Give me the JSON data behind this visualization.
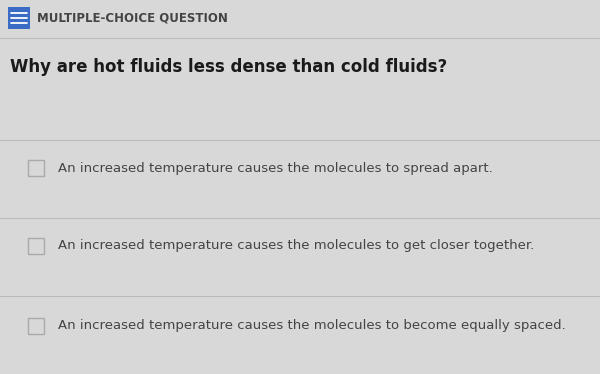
{
  "bg_color": "#d8d8d8",
  "header_icon_color": "#3a6cc6",
  "header_text": "MULTIPLE-CHOICE QUESTION",
  "header_text_color": "#444444",
  "header_fontsize": 8.5,
  "question": "Why are hot fluids less dense than cold fluids?",
  "question_fontsize": 12,
  "question_color": "#1a1a1a",
  "choices": [
    "An increased temperature causes the molecules to spread apart.",
    "An increased temperature causes the molecules to get closer together.",
    "An increased temperature causes the molecules to become equally spaced."
  ],
  "choice_fontsize": 9.5,
  "choice_color": "#444444",
  "checkbox_edge_color": "#aaaaaa",
  "divider_color": "#bbbbbb",
  "fig_width": 6.0,
  "fig_height": 3.74,
  "dpi": 100
}
